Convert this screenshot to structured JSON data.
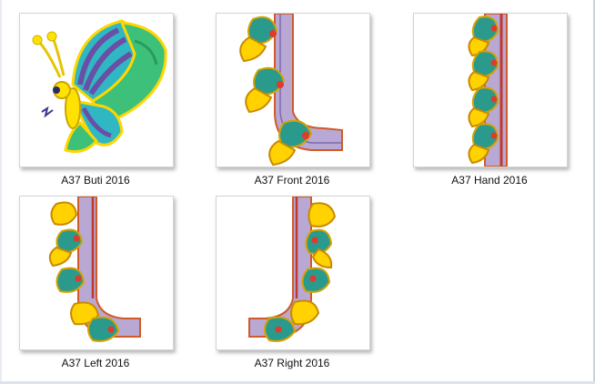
{
  "files": [
    {
      "name": "A37 Buti 2016",
      "design": "butterfly-buti"
    },
    {
      "name": "A37 Front 2016",
      "design": "front-neck"
    },
    {
      "name": "A37 Hand 2016",
      "design": "hand-border"
    },
    {
      "name": "A37 Left 2016",
      "design": "left-neck"
    },
    {
      "name": "A37 Right 2016",
      "design": "right-neck"
    }
  ]
}
